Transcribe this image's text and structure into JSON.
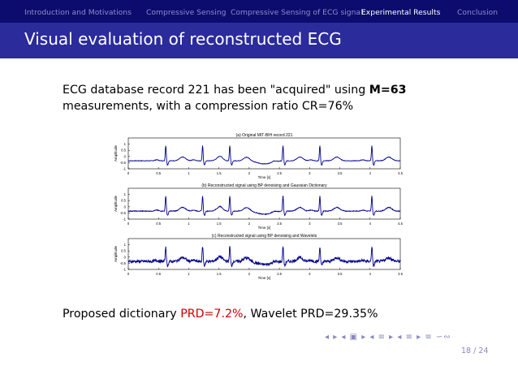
{
  "nav": {
    "items": [
      {
        "label": "Introduction and Motivations",
        "active": false
      },
      {
        "label": "Compressive Sensing",
        "active": false
      },
      {
        "label": "Compressive Sensing of ECG signal",
        "active": false
      },
      {
        "label": "Experimental Results",
        "active": true
      },
      {
        "label": "Conclusion",
        "active": false
      }
    ]
  },
  "slide": {
    "title": "Visual evaluation of reconstructed ECG",
    "intro_line1_pre": "ECG database record 221 has been \"acquired\" using ",
    "intro_line1_bold": "M=63",
    "intro_line2": "measurements, with a compression ratio CR=76%",
    "result_pre": "Proposed dictionary ",
    "result_red": "PRD=7.2%",
    "result_post": ", Wavelet PRD=29.35%",
    "page_number": "18 / 24",
    "beamer_nav_symbols": "◂ ▸ ◂ ▣ ▸ ◂ ≡ ▸ ◂ ≡ ▸ ≡ ∽∾"
  },
  "colors": {
    "nav_bg": "#0c0c6e",
    "title_bg": "#2b2b9c",
    "signal": "#00008b",
    "highlight_red": "#cc0000"
  },
  "chart_data": [
    {
      "type": "line",
      "title": "(a) Original MIT-BIH record 221",
      "xlabel": "Time [s]",
      "ylabel": "Amplitude",
      "xlim": [
        0,
        4.5
      ],
      "ylim": [
        -1,
        1.5
      ],
      "xticks": [
        "0",
        "0.5",
        "1",
        "1.5",
        "2",
        "2.5",
        "3",
        "3.5",
        "4",
        "4.5"
      ],
      "yticks": [
        "-1",
        "-0.5",
        "0",
        "0.5",
        "1"
      ],
      "beats": [
        0.62,
        1.23,
        1.68,
        2.56,
        3.17,
        4.03
      ],
      "noise": 0.02
    },
    {
      "type": "line",
      "title": "(b) Reconstructed signal using BP denoising and Gaussian Dictionary",
      "xlabel": "Time [s]",
      "ylabel": "Amplitude",
      "xlim": [
        0,
        4.5
      ],
      "ylim": [
        -1,
        1.5
      ],
      "xticks": [
        "0",
        "0.5",
        "1",
        "1.5",
        "2",
        "2.5",
        "3",
        "3.5",
        "4",
        "4.5"
      ],
      "yticks": [
        "-1",
        "-0.5",
        "0",
        "0.5",
        "1"
      ],
      "beats": [
        0.62,
        1.23,
        1.68,
        2.56,
        3.17,
        4.03
      ],
      "noise": 0.03
    },
    {
      "type": "line",
      "title": "(c) Reconstructed signal using BP denoising and Wavelets",
      "xlabel": "Time [s]",
      "ylabel": "Amplitude",
      "xlim": [
        0,
        4.5
      ],
      "ylim": [
        -1,
        1.5
      ],
      "xticks": [
        "0",
        "0.5",
        "1",
        "1.5",
        "2",
        "2.5",
        "3",
        "3.5",
        "4",
        "4.5"
      ],
      "yticks": [
        "-1",
        "-0.5",
        "0",
        "0.5",
        "1"
      ],
      "beats": [
        0.62,
        1.23,
        1.68,
        2.56,
        3.17,
        4.03
      ],
      "noise": 0.12
    }
  ]
}
